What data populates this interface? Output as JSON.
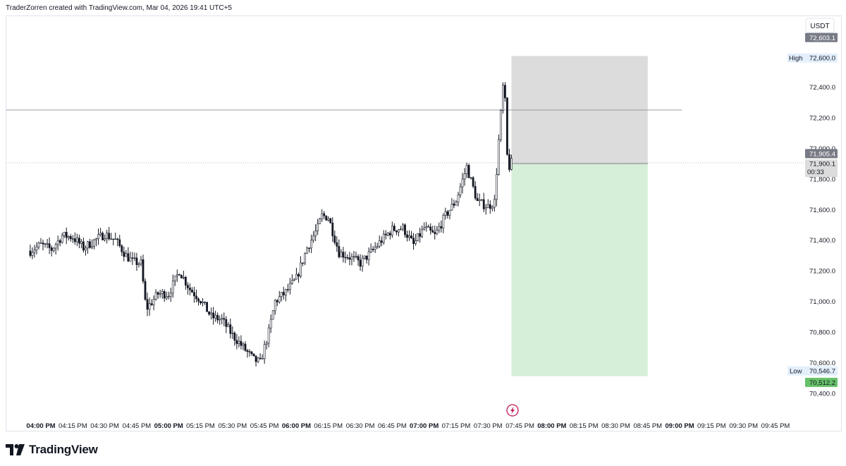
{
  "header": {
    "text": "TraderZorren created with TradingView.com, Mar 04, 2026 19:41 UTC+5"
  },
  "branding": {
    "name": "TradingView",
    "logo_icon": "tradingview-logo-icon"
  },
  "currency_button": {
    "label": "USDT"
  },
  "colors": {
    "candle": "#131722",
    "stop_zone": "#dcdcdc",
    "target_zone": "#d6efd9",
    "last_price_bg": "#787b86",
    "low_label_bg": "#67c16a",
    "high_low_tag_bg": "#e3effd",
    "lightning_icon": "#c2185b"
  },
  "price_labels": {
    "stop": "72,603.1",
    "high_tag": "High",
    "high_value": "72,600.0",
    "last_price": "71,905.4",
    "entry_price": "71,900.1",
    "countdown": "00:33",
    "low_tag": "Low",
    "low_value": "70,546.7",
    "target": "70,512.2"
  },
  "lightning_icon": "lightning-icon",
  "chart_data": {
    "type": "candlestick",
    "ylim": [
      70320,
      72780
    ],
    "y_ticks": [
      "72,400.0",
      "72,200.0",
      "72,000.0",
      "71,800.0",
      "71,600.0",
      "71,400.0",
      "71,200.0",
      "71,000.0",
      "70,800.0",
      "70,600.0",
      "70,400.0"
    ],
    "y_tick_values": [
      72400,
      72200,
      72000,
      71800,
      71600,
      71400,
      71200,
      71000,
      70800,
      70600,
      70400
    ],
    "x_labels": [
      "04:00 PM",
      "04:15 PM",
      "04:30 PM",
      "04:45 PM",
      "05:00 PM",
      "05:15 PM",
      "05:30 PM",
      "05:45 PM",
      "06:00 PM",
      "06:15 PM",
      "06:30 PM",
      "06:45 PM",
      "07:00 PM",
      "07:15 PM",
      "07:30 PM",
      "07:45 PM",
      "08:00 PM",
      "08:15 PM",
      "08:30 PM",
      "08:45 PM",
      "09:00 PM",
      "09:15 PM",
      "09:30 PM",
      "09:45 PM"
    ],
    "x_label_bold": [
      true,
      false,
      false,
      false,
      true,
      false,
      false,
      false,
      true,
      false,
      false,
      false,
      true,
      false,
      false,
      false,
      true,
      false,
      false,
      false,
      true,
      false,
      false,
      false
    ],
    "horizontal_line": 72250,
    "position": {
      "type": "short",
      "entry": 71900.1,
      "stop": 72603.1,
      "target": 70512.2,
      "start_time": "07:41 PM",
      "end_time": "08:45 PM"
    },
    "last_price": 71905.4,
    "anchors": [
      [
        "03:55 PM",
        71330
      ],
      [
        "04:00 PM",
        71370
      ],
      [
        "04:05 PM",
        71340
      ],
      [
        "04:10 PM",
        71430
      ],
      [
        "04:15 PM",
        71420
      ],
      [
        "04:20 PM",
        71350
      ],
      [
        "04:30 PM",
        71440
      ],
      [
        "04:35 PM",
        71400
      ],
      [
        "04:40 PM",
        71300
      ],
      [
        "04:43 PM",
        71260
      ],
      [
        "04:47 PM",
        71250
      ],
      [
        "04:49 PM",
        71000
      ],
      [
        "04:50 PM",
        70960
      ],
      [
        "04:55 PM",
        71050
      ],
      [
        "05:00 PM",
        71050
      ],
      [
        "05:05 PM",
        71200
      ],
      [
        "05:10 PM",
        71080
      ],
      [
        "05:15 PM",
        71010
      ],
      [
        "05:20 PM",
        70900
      ],
      [
        "05:25 PM",
        70880
      ],
      [
        "05:30 PM",
        70780
      ],
      [
        "05:35 PM",
        70700
      ],
      [
        "05:40 PM",
        70620
      ],
      [
        "05:43 PM",
        70600
      ],
      [
        "05:47 PM",
        70800
      ],
      [
        "05:50 PM",
        71000
      ],
      [
        "05:55 PM",
        71060
      ],
      [
        "06:00 PM",
        71150
      ],
      [
        "06:05 PM",
        71350
      ],
      [
        "06:10 PM",
        71480
      ],
      [
        "06:12 PM",
        71560
      ],
      [
        "06:15 PM",
        71550
      ],
      [
        "06:20 PM",
        71320
      ],
      [
        "06:25 PM",
        71290
      ],
      [
        "06:30 PM",
        71250
      ],
      [
        "06:35 PM",
        71320
      ],
      [
        "06:40 PM",
        71400
      ],
      [
        "06:45 PM",
        71470
      ],
      [
        "06:50 PM",
        71480
      ],
      [
        "06:55 PM",
        71370
      ],
      [
        "07:00 PM",
        71480
      ],
      [
        "07:05 PM",
        71430
      ],
      [
        "07:10 PM",
        71560
      ],
      [
        "07:15 PM",
        71660
      ],
      [
        "07:20 PM",
        71880
      ],
      [
        "07:25 PM",
        71650
      ],
      [
        "07:30 PM",
        71620
      ],
      [
        "07:33 PM",
        71650
      ],
      [
        "07:35 PM",
        72050
      ],
      [
        "07:37 PM",
        72400
      ],
      [
        "07:38 PM",
        72300
      ],
      [
        "07:39 PM",
        71950
      ],
      [
        "07:40 PM",
        71880
      ],
      [
        "07:41 PM",
        71905
      ]
    ]
  }
}
